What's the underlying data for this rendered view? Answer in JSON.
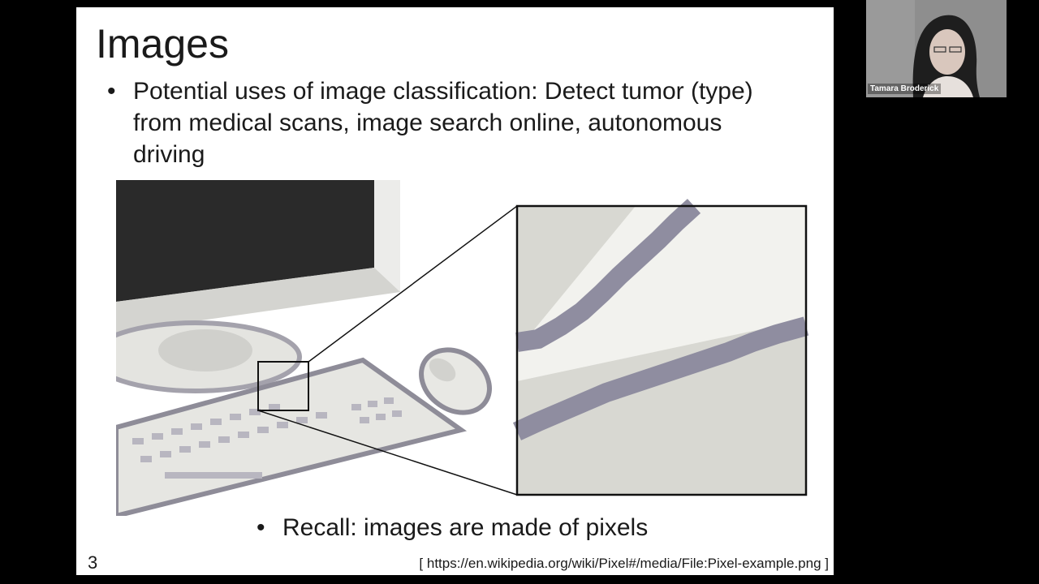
{
  "slide": {
    "title": "Images",
    "bullet_top": "Potential uses of image classification: Detect tumor (type) from medical scans, image search online, autonomous driving",
    "bullet_bottom": "Recall: images are made of pixels",
    "bullet_symbol": "•",
    "page_number": "3",
    "source": "[ https://en.wikipedia.org/wiki/Pixel#/media/File:Pixel-example.png ]"
  },
  "video": {
    "participant_name": "Tamara Broderick"
  },
  "colors": {
    "background": "#000000",
    "slide_background": "#ffffff",
    "monitor_dark": "#2a2a2a",
    "device_light": "#e8e8e4",
    "device_outline": "#8e8c98",
    "pixel_stroke": "#8f8da0"
  }
}
